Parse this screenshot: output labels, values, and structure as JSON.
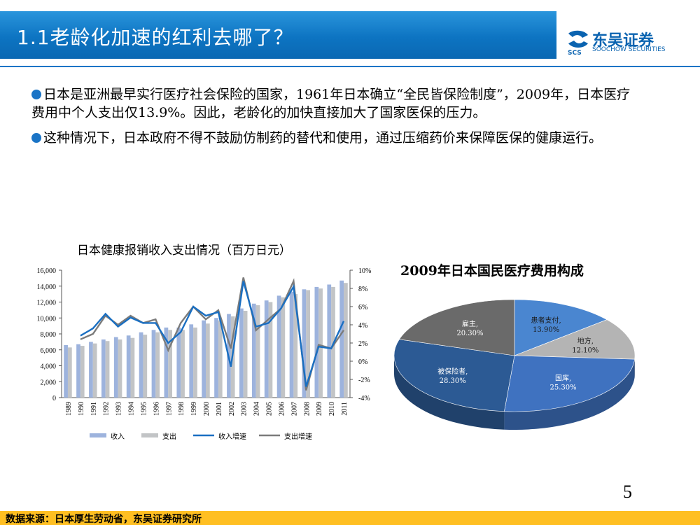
{
  "title": "1.1老龄化加速的红利去哪了？",
  "logo": {
    "name": "东吴证券",
    "sub": "SOOCHOW SECURITIES",
    "mark": "SCS"
  },
  "bullets": [
    "日本是亚洲最早实行医疗社会保险的国家，1961年日本确立“全民皆保险制度”，2009年，日本医疗费用中个人支出仅13.9%。因此，老龄化的加快直接加大了国家医保的压力。",
    "这种情况下，日本政府不得不鼓励仿制药的替代和使用，通过压缩药价来保障医保的健康运行。"
  ],
  "page_number": "5",
  "footer": "数据来源：日本厚生劳动省，东吴证券研究所",
  "colors": {
    "income": "#9db3dd",
    "expense": "#c2c4c6",
    "income_growth": "#1a6fc2",
    "expense_growth": "#7b7b7b"
  },
  "chart_data": [
    {
      "type": "bar",
      "title": "日本健康报销收入支出情况（百万日元）",
      "categories": [
        "1989",
        "1990",
        "1991",
        "1992",
        "1993",
        "1994",
        "1995",
        "1996",
        "1997",
        "1998",
        "1999",
        "2000",
        "2001",
        "2002",
        "2003",
        "2004",
        "2005",
        "2006",
        "2007",
        "2008",
        "2009",
        "2010",
        "2011"
      ],
      "y_ticks": [
        "16,000",
        "14,000",
        "12,000",
        "10,000",
        "8,000",
        "6,000",
        "4,000",
        "2,000",
        "0"
      ],
      "y2_ticks": [
        "10%",
        "8%",
        "6%",
        "4%",
        "2%",
        "0%",
        "-2%",
        "-4%"
      ],
      "ylim": [
        0,
        16000
      ],
      "y2lim": [
        -4,
        10
      ],
      "series": [
        {
          "name": "收入",
          "kind": "bar",
          "axis": "left",
          "values": [
            6600,
            6700,
            7000,
            7300,
            7600,
            7800,
            8200,
            8500,
            8800,
            8800,
            9200,
            9700,
            10000,
            10500,
            11200,
            11800,
            12200,
            12800,
            13300,
            13600,
            13900,
            14200,
            14700
          ]
        },
        {
          "name": "支出",
          "kind": "bar",
          "axis": "left",
          "values": [
            6300,
            6500,
            6800,
            7100,
            7300,
            7500,
            7900,
            8200,
            8500,
            8500,
            8800,
            9300,
            9700,
            10200,
            10900,
            11600,
            12000,
            12600,
            13000,
            13500,
            13700,
            13900,
            14400
          ]
        },
        {
          "name": "收入增速",
          "kind": "line",
          "axis": "right",
          "values": [
            null,
            2.8,
            3.6,
            5.2,
            3.8,
            4.8,
            4.2,
            4.2,
            2.0,
            3.2,
            6.0,
            5.0,
            5.4,
            -0.6,
            8.8,
            3.8,
            4.2,
            5.8,
            8.2,
            -2.8,
            1.6,
            1.4,
            4.4
          ]
        },
        {
          "name": "支出增速",
          "kind": "line",
          "axis": "right",
          "values": [
            null,
            2.4,
            3.0,
            5.0,
            4.0,
            5.0,
            4.2,
            4.6,
            1.2,
            4.2,
            6.0,
            4.6,
            5.6,
            1.4,
            9.2,
            3.4,
            4.6,
            5.8,
            8.8,
            -3.2,
            1.8,
            1.4,
            3.4
          ]
        }
      ],
      "legend": {
        "position": "bottom"
      }
    },
    {
      "type": "pie",
      "title": "2009年日本国民医疗费用构成",
      "slices": [
        {
          "label": "患者支付",
          "value": 13.9,
          "display": "13.90%",
          "color": "#4a86d0"
        },
        {
          "label": "地方",
          "value": 12.1,
          "display": "12.10%",
          "color": "#b4b4b4"
        },
        {
          "label": "国库",
          "value": 25.3,
          "display": "25.30%",
          "color": "#3f72c0"
        },
        {
          "label": "被保险者",
          "value": 28.3,
          "display": "28.30%",
          "color": "#2c5a94"
        },
        {
          "label": "雇主",
          "value": 20.3,
          "display": "20.30%",
          "color": "#6a6a6a"
        }
      ]
    }
  ]
}
